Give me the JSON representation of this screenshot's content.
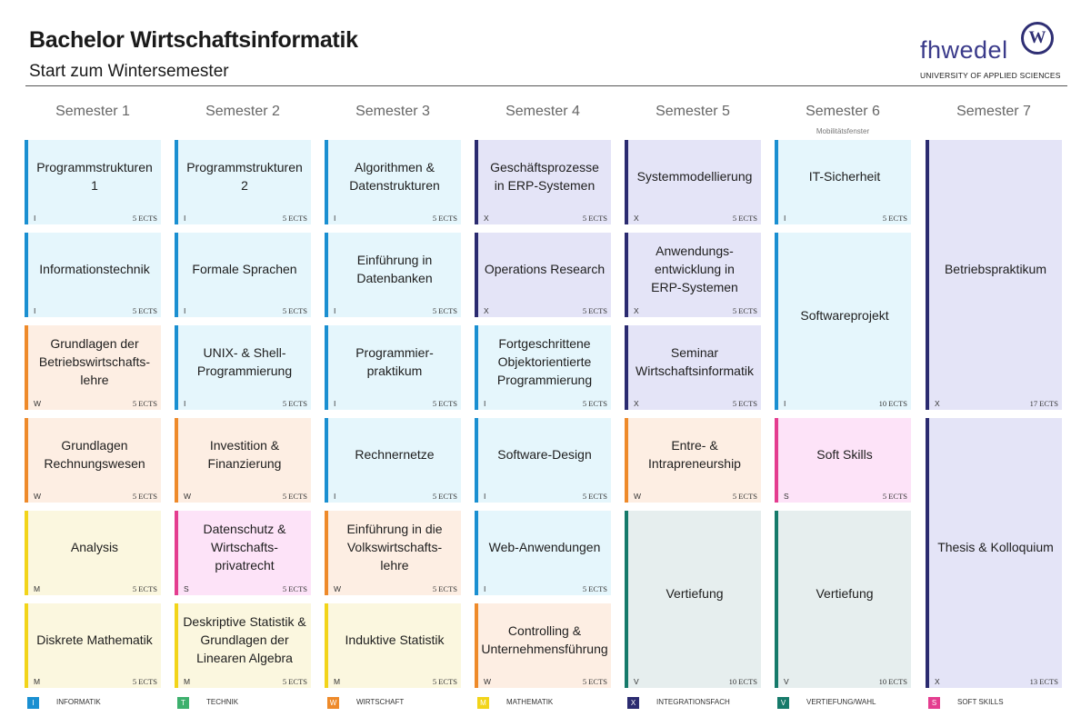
{
  "header": {
    "title": "Bachelor Wirtschaftsinformatik",
    "subtitle": "Start zum Wintersemester",
    "logo_text": "fhwedel",
    "logo_tagline": "UNIVERSITY OF APPLIED SCIENCES",
    "logo_seal": "W"
  },
  "colors": {
    "I": {
      "bar": "#1a8fd1",
      "bg": "#e5f6fc"
    },
    "T": {
      "bar": "#3db06d",
      "bg": "#e6f6ec"
    },
    "W": {
      "bar": "#ee8a2a",
      "bg": "#fdeee3"
    },
    "M": {
      "bar": "#f2d41a",
      "bg": "#fbf7df"
    },
    "X": {
      "bar": "#2b2b70",
      "bg": "#e4e4f7"
    },
    "V": {
      "bar": "#167a6a",
      "bg": "#e6eeee"
    },
    "S": {
      "bar": "#e43d8f",
      "bg": "#fde3f8"
    }
  },
  "semesters": [
    {
      "label": "Semester 1",
      "note": ""
    },
    {
      "label": "Semester 2",
      "note": ""
    },
    {
      "label": "Semester 3",
      "note": ""
    },
    {
      "label": "Semester 4",
      "note": ""
    },
    {
      "label": "Semester 5",
      "note": ""
    },
    {
      "label": "Semester 6",
      "note": "Mobilitätsfenster"
    },
    {
      "label": "Semester 7",
      "note": ""
    }
  ],
  "modules": [
    {
      "sem": 1,
      "row": 1,
      "span": 1,
      "name": "Programmstrukturen 1",
      "cat": "I",
      "ects": "5 ECTS"
    },
    {
      "sem": 1,
      "row": 2,
      "span": 1,
      "name": "Informationstechnik",
      "cat": "I",
      "ects": "5 ECTS"
    },
    {
      "sem": 1,
      "row": 3,
      "span": 1,
      "name": "Grundlagen der\nBetriebswirtschafts-\nlehre",
      "cat": "W",
      "ects": "5 ECTS"
    },
    {
      "sem": 1,
      "row": 4,
      "span": 1,
      "name": "Grundlagen\nRechnungswesen",
      "cat": "W",
      "ects": "5 ECTS"
    },
    {
      "sem": 1,
      "row": 5,
      "span": 1,
      "name": "Analysis",
      "cat": "M",
      "ects": "5 ECTS"
    },
    {
      "sem": 1,
      "row": 6,
      "span": 1,
      "name": "Diskrete Mathematik",
      "cat": "M",
      "ects": "5 ECTS"
    },
    {
      "sem": 2,
      "row": 1,
      "span": 1,
      "name": "Programmstrukturen 2",
      "cat": "I",
      "ects": "5 ECTS"
    },
    {
      "sem": 2,
      "row": 2,
      "span": 1,
      "name": "Formale Sprachen",
      "cat": "I",
      "ects": "5 ECTS"
    },
    {
      "sem": 2,
      "row": 3,
      "span": 1,
      "name": "UNIX- & Shell-\nProgrammierung",
      "cat": "I",
      "ects": "5 ECTS"
    },
    {
      "sem": 2,
      "row": 4,
      "span": 1,
      "name": "Investition &\nFinanzierung",
      "cat": "W",
      "ects": "5 ECTS"
    },
    {
      "sem": 2,
      "row": 5,
      "span": 1,
      "name": "Datenschutz &\nWirtschafts-\nprivatrecht",
      "cat": "S",
      "ects": "5 ECTS"
    },
    {
      "sem": 2,
      "row": 6,
      "span": 1,
      "name": "Deskriptive Statistik &\nGrundlagen der\nLinearen Algebra",
      "cat": "M",
      "ects": "5 ECTS"
    },
    {
      "sem": 3,
      "row": 1,
      "span": 1,
      "name": "Algorithmen &\nDatenstrukturen",
      "cat": "I",
      "ects": "5 ECTS"
    },
    {
      "sem": 3,
      "row": 2,
      "span": 1,
      "name": "Einführung in\nDatenbanken",
      "cat": "I",
      "ects": "5 ECTS"
    },
    {
      "sem": 3,
      "row": 3,
      "span": 1,
      "name": "Programmier-\npraktikum",
      "cat": "I",
      "ects": "5 ECTS"
    },
    {
      "sem": 3,
      "row": 4,
      "span": 1,
      "name": "Rechnernetze",
      "cat": "I",
      "ects": "5 ECTS"
    },
    {
      "sem": 3,
      "row": 5,
      "span": 1,
      "name": "Einführung in die\nVolkswirtschafts-\nlehre",
      "cat": "W",
      "ects": "5 ECTS"
    },
    {
      "sem": 3,
      "row": 6,
      "span": 1,
      "name": "Induktive Statistik",
      "cat": "M",
      "ects": "5 ECTS"
    },
    {
      "sem": 4,
      "row": 1,
      "span": 1,
      "name": "Geschäftsprozesse\nin ERP-Systemen",
      "cat": "X",
      "ects": "5 ECTS"
    },
    {
      "sem": 4,
      "row": 2,
      "span": 1,
      "name": "Operations Research",
      "cat": "X",
      "ects": "5 ECTS"
    },
    {
      "sem": 4,
      "row": 3,
      "span": 1,
      "name": "Fortgeschrittene\nObjektorientierte\nProgrammierung",
      "cat": "I",
      "ects": "5 ECTS"
    },
    {
      "sem": 4,
      "row": 4,
      "span": 1,
      "name": "Software-Design",
      "cat": "I",
      "ects": "5 ECTS"
    },
    {
      "sem": 4,
      "row": 5,
      "span": 1,
      "name": "Web-Anwendungen",
      "cat": "I",
      "ects": "5 ECTS"
    },
    {
      "sem": 4,
      "row": 6,
      "span": 1,
      "name": "Controlling &\nUnternehmensführung",
      "cat": "W",
      "ects": "5 ECTS"
    },
    {
      "sem": 5,
      "row": 1,
      "span": 1,
      "name": "Systemmodellierung",
      "cat": "X",
      "ects": "5 ECTS"
    },
    {
      "sem": 5,
      "row": 2,
      "span": 1,
      "name": "Anwendungs-\nentwicklung in\nERP-Systemen",
      "cat": "X",
      "ects": "5 ECTS"
    },
    {
      "sem": 5,
      "row": 3,
      "span": 1,
      "name": "Seminar\nWirtschaftsinformatik",
      "cat": "X",
      "ects": "5 ECTS"
    },
    {
      "sem": 5,
      "row": 4,
      "span": 1,
      "name": "Entre- &\nIntrapreneurship",
      "cat": "W",
      "ects": "5 ECTS"
    },
    {
      "sem": 5,
      "row": 5,
      "span": 2,
      "name": "Vertiefung",
      "cat": "V",
      "ects": "10 ECTS"
    },
    {
      "sem": 6,
      "row": 1,
      "span": 1,
      "name": "IT-Sicherheit",
      "cat": "I",
      "ects": "5 ECTS"
    },
    {
      "sem": 6,
      "row": 2,
      "span": 2,
      "name": "Softwareprojekt",
      "cat": "I",
      "ects": "10 ECTS"
    },
    {
      "sem": 6,
      "row": 4,
      "span": 1,
      "name": "Soft Skills",
      "cat": "S",
      "ects": "5 ECTS"
    },
    {
      "sem": 6,
      "row": 5,
      "span": 2,
      "name": "Vertiefung",
      "cat": "V",
      "ects": "10 ECTS"
    },
    {
      "sem": 7,
      "row": 1,
      "span": 3,
      "name": "Betriebspraktikum",
      "cat": "X",
      "ects": "17 ECTS"
    },
    {
      "sem": 7,
      "row": 4,
      "span": 3,
      "name": "Thesis & Kolloquium",
      "cat": "X",
      "ects": "13 ECTS"
    }
  ],
  "legend": [
    {
      "code": "I",
      "label": "INFORMATIK"
    },
    {
      "code": "T",
      "label": "TECHNIK"
    },
    {
      "code": "W",
      "label": "WIRTSCHAFT"
    },
    {
      "code": "M",
      "label": "MATHEMATIK"
    },
    {
      "code": "X",
      "label": "INTEGRATIONSFACH"
    },
    {
      "code": "V",
      "label": "VERTIEFUNG/WAHL"
    },
    {
      "code": "S",
      "label": "SOFT SKILLS"
    }
  ]
}
